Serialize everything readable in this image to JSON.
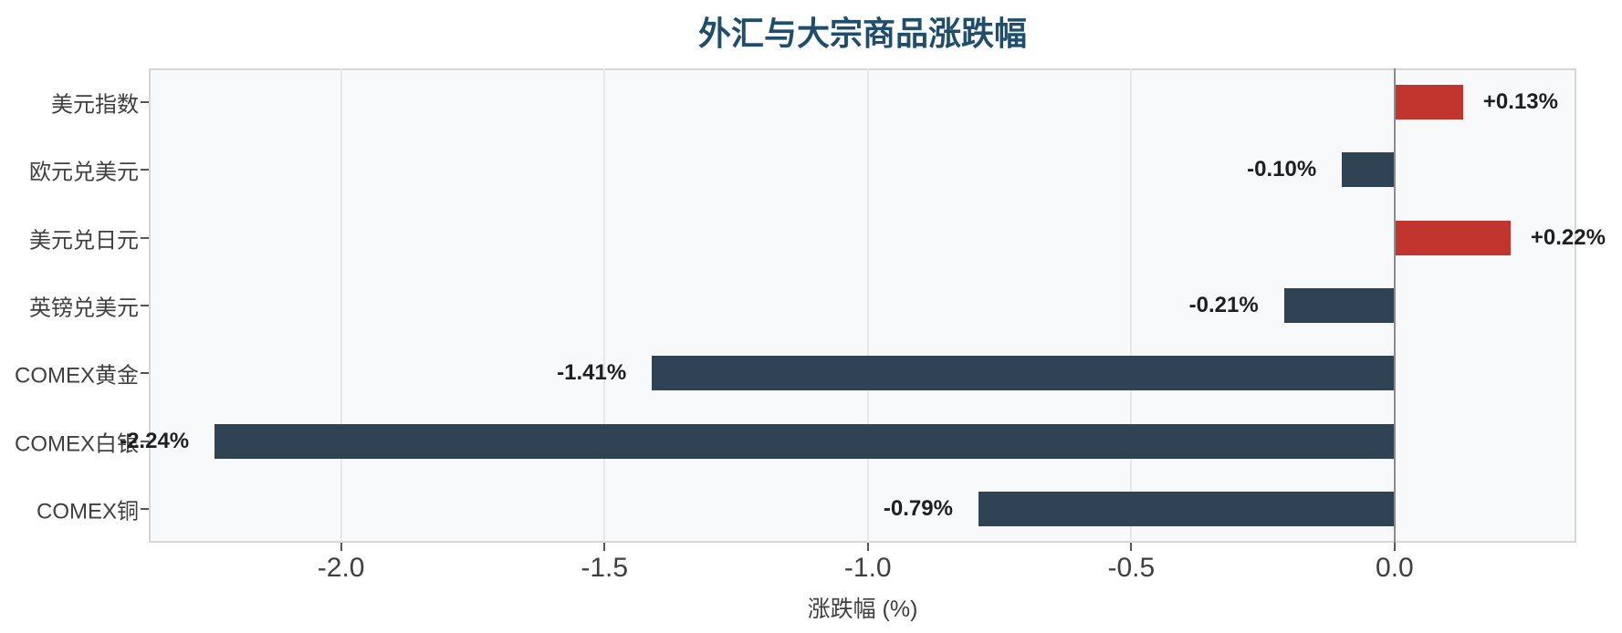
{
  "chart_data": {
    "type": "bar",
    "orientation": "horizontal",
    "title": "外汇与大宗商品涨跌幅",
    "xlabel": "涨跌幅 (%)",
    "categories": [
      "美元指数",
      "欧元兑美元",
      "美元兑日元",
      "英镑兑美元",
      "COMEX黄金",
      "COMEX白银",
      "COMEX铜"
    ],
    "values": [
      0.13,
      -0.1,
      0.22,
      -0.21,
      -1.41,
      -2.24,
      -0.79
    ],
    "value_labels": [
      "+0.13%",
      "-0.10%",
      "+0.22%",
      "-0.21%",
      "-1.41%",
      "-2.24%",
      "-0.79%"
    ],
    "xticks": [
      -2.0,
      -1.5,
      -1.0,
      -0.5,
      0.0
    ],
    "xtick_labels": [
      "-2.0",
      "-1.5",
      "-1.0",
      "-0.5",
      "0.0"
    ],
    "xlim": [
      -2.365,
      0.345
    ],
    "grid": "vertical-on",
    "legend": "none",
    "colors": {
      "positive_bar": "#c1352e",
      "negative_bar": "#2f4354",
      "title_text": "#1f4e6c",
      "value_label_text": "#1f1f1f",
      "tick_label_text": "#3f3f3f",
      "category_label_text": "#3f3f3f",
      "axis_label_text": "#3f3f3f",
      "zero_line": "#8c8c8c",
      "gridline": "#e8e8e8",
      "tick_mark": "#555555",
      "plot_background": "#f8f9fa",
      "plot_border": "#d6d6d6",
      "page_background": "#ffffff"
    }
  }
}
